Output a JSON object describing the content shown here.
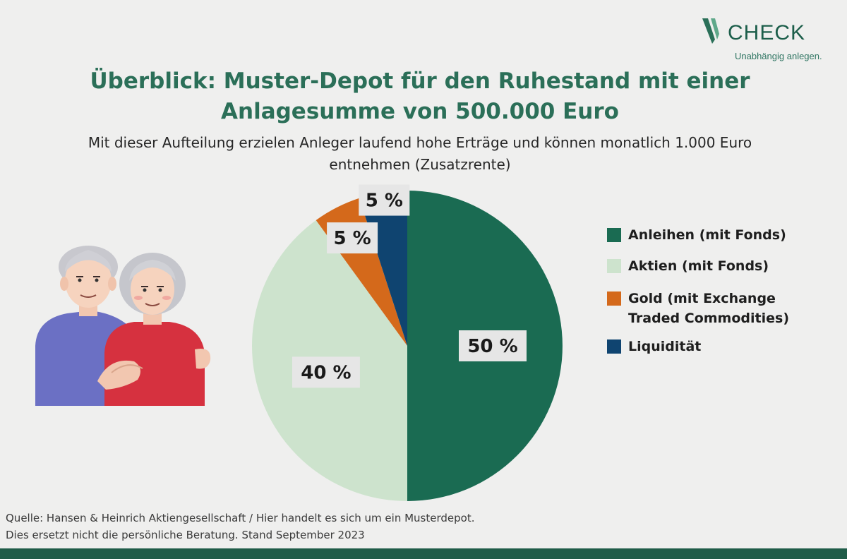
{
  "brand": {
    "name": "CHECK",
    "tagline": "Unabhängig anlegen."
  },
  "title_line1": "Überblick: Muster-Depot für den Ruhestand mit einer",
  "title_line2": "Anlagesumme von 500.000 Euro",
  "subtitle_line1": "Mit dieser Aufteilung erzielen Anleger laufend hohe Erträge und können monatlich 1.000 Euro",
  "subtitle_line2": "entnehmen (Zusatzrente)",
  "chart_data": {
    "type": "pie",
    "categories": [
      "Anleihen (mit Fonds)",
      "Aktien (mit Fonds)",
      "Gold (mit Exchange Traded Commodities)",
      "Liquidität"
    ],
    "values": [
      50,
      40,
      5,
      5
    ],
    "value_labels": [
      "50 %",
      "40 %",
      "5 %",
      "5 %"
    ],
    "colors": [
      "#1a6b52",
      "#cde3cd",
      "#d4691b",
      "#0f4470"
    ],
    "start_angle": "12 o'clock, clockwise",
    "legend_position": "right"
  },
  "legend": {
    "items": [
      {
        "label_line1": "Anleihen (mit Fonds)",
        "color": "#1a6b52"
      },
      {
        "label_line1": "Aktien (mit Fonds)",
        "color": "#cde3cd"
      },
      {
        "label_line1": "Gold (mit Exchange",
        "label_line2": "Traded Commodities)",
        "color": "#d4691b"
      },
      {
        "label_line1": "Liquidität",
        "color": "#0f4470"
      }
    ]
  },
  "source_line1": "Quelle: Hansen & Heinrich Aktiengesellschaft  / Hier handelt es sich um ein Musterdepot.",
  "source_line2": "Dies ersetzt nicht die persönliche Beratung. Stand September 2023",
  "colors": {
    "background": "#efefee",
    "brand_green": "#1f5c48",
    "title_green": "#2b6f58"
  }
}
